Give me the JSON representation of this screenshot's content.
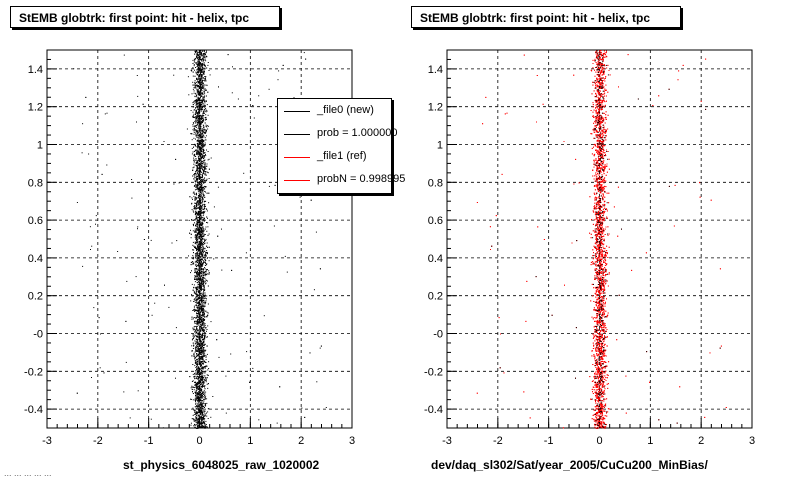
{
  "chart_data": [
    {
      "type": "scatter",
      "title": "StEMB globtrk: first point: hit - helix, tpc",
      "xlabel": "st_physics_6048025_raw_1020002",
      "ylabel": "",
      "xlim": [
        -3,
        3
      ],
      "ylim": [
        -0.5,
        1.5
      ],
      "x_ticks": [
        "-3",
        "-2",
        "-1",
        "0",
        "1",
        "2",
        "3"
      ],
      "y_ticks": [
        "-0.4",
        "-0.2",
        "-0",
        "0.2",
        "0.4",
        "0.6",
        "0.8",
        "1",
        "1.2",
        "1.4"
      ],
      "grid": true,
      "legend_position": "top-right",
      "series": [
        {
          "name": "_file0 (new)",
          "color": "#000000",
          "x_center": 0.0,
          "x_spread": 0.12,
          "points": 5200
        }
      ]
    },
    {
      "type": "scatter",
      "title": "StEMB globtrk: first point: hit - helix, tpc",
      "xlabel": "dev/daq_sl302/Sat/year_2005/CuCu200_MinBias/",
      "ylabel": "",
      "xlim": [
        -3,
        3
      ],
      "ylim": [
        -0.5,
        1.5
      ],
      "x_ticks": [
        "-3",
        "-2",
        "-1",
        "0",
        "1",
        "2",
        "3"
      ],
      "y_ticks": [
        "-0.4",
        "-0.2",
        "-0",
        "0.2",
        "0.4",
        "0.6",
        "0.8",
        "1",
        "1.2",
        "1.4"
      ],
      "grid": true,
      "series": [
        {
          "name": "_file1 (ref)",
          "color": "#ff0000",
          "x_center": 0.0,
          "x_spread": 0.12,
          "points": 5200
        },
        {
          "name": "_file0 (new)",
          "color": "#000000",
          "x_center": 0.0,
          "x_spread": 0.1,
          "points": 500
        }
      ]
    }
  ],
  "legend": {
    "entries": [
      {
        "label": "_file0 (new)",
        "color": "#000000"
      },
      {
        "label": "prob = 1.000000",
        "color": "#000000"
      },
      {
        "label": "_file1 (ref)",
        "color": "#ff0000"
      },
      {
        "label": "probN = 0.998995",
        "color": "#ff0000"
      }
    ]
  },
  "footer": "... ... ... ... ..."
}
